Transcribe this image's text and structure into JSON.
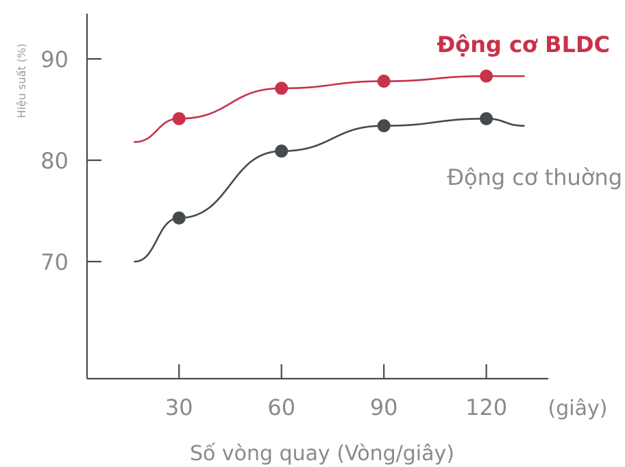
{
  "chart_data": {
    "type": "line",
    "title": "",
    "xlabel": "Số vòng quay (Vòng/giây)",
    "x_unit": "(giây)",
    "ylabel": "Hiệu suất (%)",
    "x_ticks": [
      30,
      60,
      90,
      120
    ],
    "y_ticks": [
      70,
      80,
      90
    ],
    "xlim": [
      0,
      135
    ],
    "ylim": [
      64,
      93
    ],
    "grid": false,
    "series": [
      {
        "name": "Động cơ BLDC",
        "color": "#c8324a",
        "x": [
          30,
          60,
          90,
          120
        ],
        "values": [
          84.1,
          87.1,
          87.8,
          88.3
        ],
        "line_start": [
          17,
          81.8
        ],
        "line_end": [
          131,
          88.3
        ],
        "label_position": "top-right"
      },
      {
        "name": "Động cơ thuờng",
        "color": "#454a4d",
        "x": [
          30,
          60,
          90,
          120
        ],
        "values": [
          74.3,
          80.9,
          83.4,
          84.1
        ],
        "line_start": [
          17,
          70.0
        ],
        "line_end": [
          131,
          83.4
        ],
        "label_position": "right"
      }
    ]
  }
}
